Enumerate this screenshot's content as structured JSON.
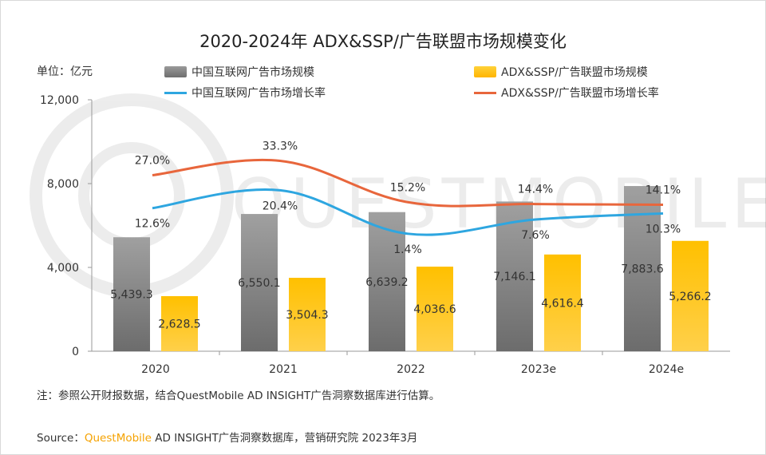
{
  "title": "2020-2024年 ADX&SSP/广告联盟市场规模变化",
  "unit": "单位：亿元",
  "legend": {
    "bar1": "中国互联网广告市场规模",
    "bar2": "ADX&SSP/广告联盟市场规模",
    "line1": "中国互联网广告市场增长率",
    "line2": "ADX&SSP/广告联盟市场增长率"
  },
  "colors": {
    "bar1": "#8a8a8a",
    "bar2": "#ffc000",
    "line1": "#2ea6e0",
    "line2": "#e8663c"
  },
  "note": "注：参照公开财报数据，结合QuestMobile AD INSIGHT广告洞察数据库进行估算。",
  "source": {
    "prefix": "Source：",
    "brand": "QuestMobile",
    "rest": " AD INSIGHT广告洞察数据库，营销研究院 2023年3月"
  },
  "chart_data": {
    "type": "bar",
    "categories": [
      "2020",
      "2021",
      "2022",
      "2023e",
      "2024e"
    ],
    "ylim": [
      0,
      12000
    ],
    "yticks": [
      "0",
      "4,000",
      "8,000",
      "12,000"
    ],
    "series": [
      {
        "name": "中国互联网广告市场规模",
        "kind": "bar",
        "values": [
          5439.3,
          6550.1,
          6639.2,
          7146.1,
          7883.6
        ],
        "labels": [
          "5,439.3",
          "6,550.1",
          "6,639.2",
          "7,146.1",
          "7,883.6"
        ]
      },
      {
        "name": "ADX&SSP/广告联盟市场规模",
        "kind": "bar",
        "values": [
          2628.5,
          3504.3,
          4036.6,
          4616.4,
          5266.2
        ],
        "labels": [
          "2,628.5",
          "3,504.3",
          "4,036.6",
          "4,616.4",
          "5,266.2"
        ]
      },
      {
        "name": "中国互联网广告市场增长率",
        "kind": "line",
        "values": [
          12.6,
          20.4,
          1.4,
          7.6,
          10.3
        ],
        "labels": [
          "12.6%",
          "20.4%",
          "1.4%",
          "7.6%",
          "10.3%"
        ]
      },
      {
        "name": "ADX&SSP/广告联盟市场增长率",
        "kind": "line",
        "values": [
          27.0,
          33.3,
          15.2,
          14.4,
          14.1
        ],
        "labels": [
          "27.0%",
          "33.3%",
          "15.2%",
          "14.4%",
          "14.1%"
        ]
      }
    ]
  }
}
